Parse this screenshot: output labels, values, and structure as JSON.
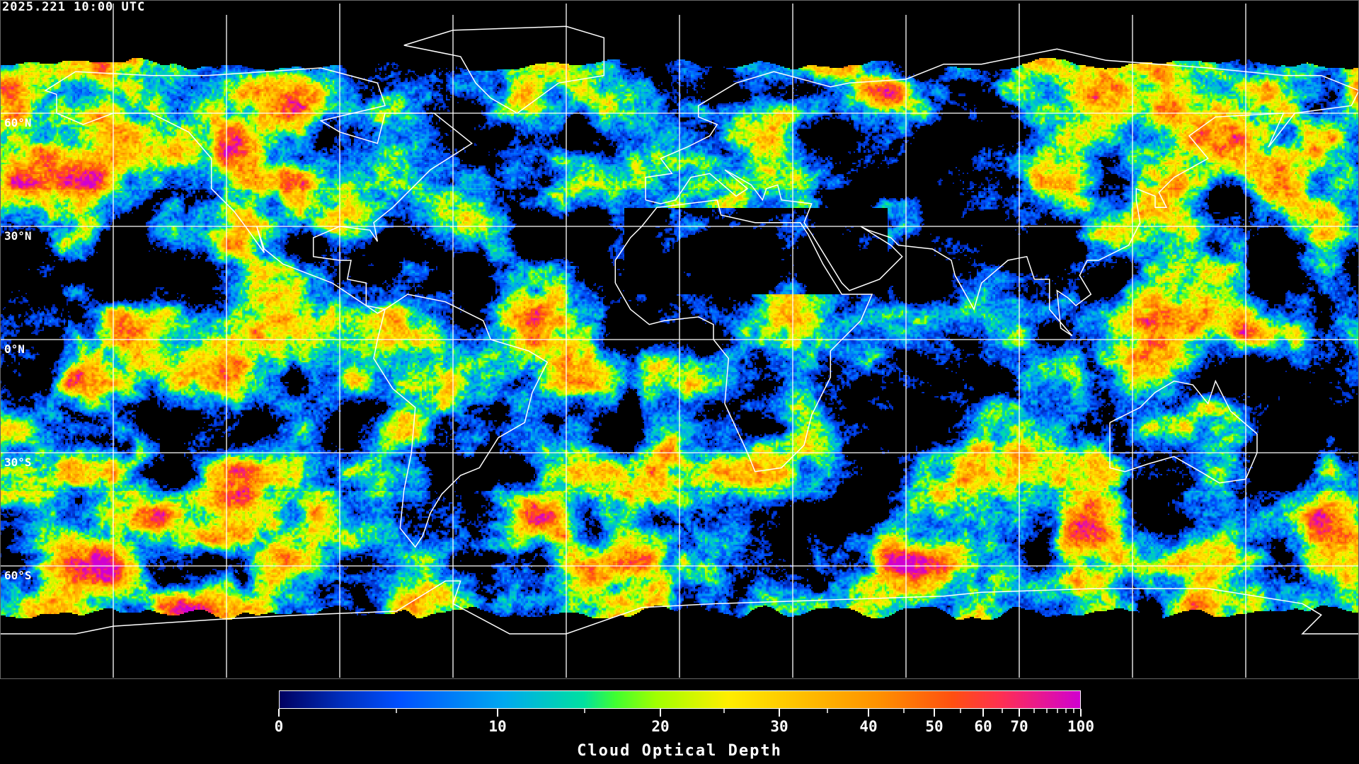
{
  "map": {
    "timestamp": "2025.221 10:00 UTC",
    "projection": "equirectangular",
    "gridlines": true,
    "gridline_color": "#ffffff",
    "coastline_color": "#ffffff",
    "lat_labels": [
      "60°N",
      "30°N",
      "0°N",
      "30°S",
      "60°S"
    ]
  },
  "colorbar": {
    "title": "Cloud Optical Depth",
    "range": [
      0,
      100
    ],
    "major_ticks": [
      "0",
      "10",
      "20",
      "30",
      "40",
      "50",
      "60",
      "70",
      "100"
    ],
    "minor_ticks": [
      5,
      15,
      25,
      35,
      45,
      55,
      65,
      75,
      80,
      85,
      90,
      95
    ],
    "colors": [
      "#000060",
      "#0030c0",
      "#0050ff",
      "#00a8f0",
      "#00e0a0",
      "#40ff30",
      "#a0ff00",
      "#ffee00",
      "#ffbb00",
      "#ff9000",
      "#ff5010",
      "#ff3050",
      "#d000d0"
    ]
  }
}
